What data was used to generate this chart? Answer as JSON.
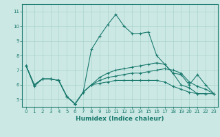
{
  "xlabel": "Humidex (Indice chaleur)",
  "bg_color": "#cce8e4",
  "line_color": "#1a7a6e",
  "grid_color": "#aad4ce",
  "xlim": [
    -0.5,
    23.5
  ],
  "ylim": [
    4.5,
    11.5
  ],
  "yticks": [
    5,
    6,
    7,
    8,
    9,
    10,
    11
  ],
  "xticks": [
    0,
    1,
    2,
    3,
    4,
    5,
    6,
    7,
    8,
    9,
    10,
    11,
    12,
    13,
    14,
    15,
    16,
    17,
    18,
    19,
    20,
    21,
    22,
    23
  ],
  "lines": [
    {
      "x": [
        0,
        1,
        2,
        3,
        4,
        5,
        6,
        7,
        8,
        9,
        10,
        11,
        12,
        13,
        14,
        15,
        16,
        17,
        18,
        19,
        20,
        21,
        22
      ],
      "y": [
        7.3,
        5.9,
        6.4,
        6.4,
        6.3,
        5.2,
        4.7,
        5.5,
        8.4,
        9.3,
        10.1,
        10.8,
        10.0,
        9.5,
        9.5,
        9.6,
        8.0,
        7.4,
        6.8,
        6.0,
        5.8,
        5.4,
        5.4
      ]
    },
    {
      "x": [
        0,
        1,
        2,
        3,
        4,
        5,
        6,
        7,
        8,
        9,
        10,
        11,
        12,
        13,
        14,
        15,
        16,
        17,
        18,
        19,
        20,
        21,
        22,
        23
      ],
      "y": [
        7.3,
        6.0,
        6.4,
        6.4,
        6.3,
        5.2,
        4.7,
        5.5,
        6.0,
        6.5,
        6.8,
        7.0,
        7.1,
        7.2,
        7.3,
        7.4,
        7.5,
        7.4,
        6.8,
        6.7,
        6.0,
        6.7,
        6.0,
        5.4
      ]
    },
    {
      "x": [
        0,
        1,
        2,
        3,
        4,
        5,
        6,
        7,
        8,
        9,
        10,
        11,
        12,
        13,
        14,
        15,
        16,
        17,
        18,
        19,
        20,
        21,
        22,
        23
      ],
      "y": [
        7.3,
        6.0,
        6.4,
        6.4,
        6.3,
        5.2,
        4.7,
        5.5,
        6.0,
        6.3,
        6.5,
        6.6,
        6.7,
        6.8,
        6.8,
        6.9,
        7.0,
        7.1,
        7.0,
        6.8,
        6.2,
        5.9,
        5.7,
        5.4
      ]
    },
    {
      "x": [
        0,
        1,
        2,
        3,
        4,
        5,
        6,
        7,
        8,
        9,
        10,
        11,
        12,
        13,
        14,
        15,
        16,
        17,
        18,
        19,
        20,
        21,
        22,
        23
      ],
      "y": [
        7.3,
        6.0,
        6.4,
        6.4,
        6.3,
        5.2,
        4.7,
        5.5,
        6.0,
        6.1,
        6.2,
        6.3,
        6.3,
        6.3,
        6.3,
        6.3,
        6.3,
        6.2,
        5.9,
        5.7,
        5.5,
        5.4,
        5.4,
        5.4
      ]
    }
  ]
}
